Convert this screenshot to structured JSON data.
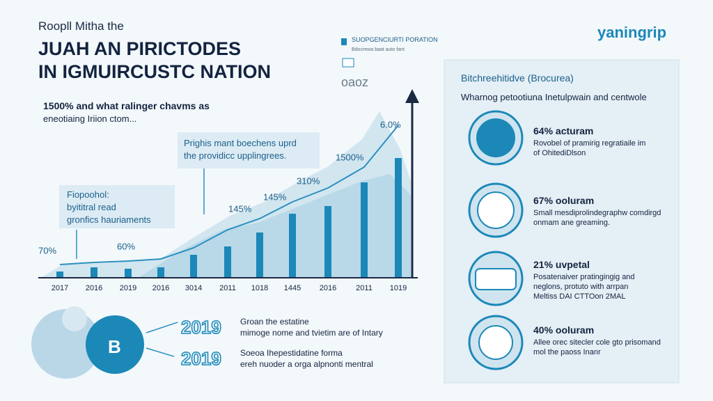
{
  "header": {
    "kicker": "Roopll Mitha the",
    "title_line1": "JUAH AN PIRICTODES",
    "title_line2": "IN IGMUIRCUSTC NATION",
    "logo": "yaningrip",
    "badge_title": "SUOPGENCIURTI PORATION",
    "badge_text": "Bdocrewa baat auto fant",
    "code": "oaoz"
  },
  "intro": {
    "line1": "1500% and what ralinger chavms as",
    "line2": "eneotiaing Iriion ctom..."
  },
  "callouts": [
    {
      "line1": "Prighis mant boechens uprd",
      "line2": "the providicc upplingrees."
    },
    {
      "line1": "Fiopoohol:",
      "line2": "byititral read",
      "line3": "gronfics hauriaments"
    }
  ],
  "chart": {
    "categories": [
      "2017",
      "2016",
      "2019",
      "2016",
      "3014",
      "2011",
      "1018",
      "1445",
      "2016",
      "2011",
      "1019"
    ],
    "values": [
      8,
      14,
      12,
      14,
      32,
      44,
      64,
      91,
      102,
      136,
      171
    ],
    "color": "#1b88b8",
    "annotations": [
      "70%",
      "60%",
      "145%",
      "145%",
      "310%",
      "1500%",
      "6.0%"
    ]
  },
  "panel": {
    "title": "Bitchreehitidve (Brocurea)",
    "subtitle": "Wharnog petootiuna Inetulpwain and centwole",
    "items": [
      {
        "stat": "64% acturam",
        "line1": "Rovobel of pramirig regratiaile im",
        "line2": "of OhitediDlson"
      },
      {
        "stat": "67% ooluram",
        "line1": "Small mesdiprolindegraphw comdirgd",
        "line2": "onmam ane greaming."
      },
      {
        "stat": "21% uvpetal",
        "line1": "Posatenaiver pratingingig and",
        "line2": "neglons, protuto with arrpan",
        "line3": "Meltiss DAI CTTOon 2MAL"
      },
      {
        "stat": "40% ooluram",
        "line1": "Allee orec sitecler cole gto prisomand",
        "line2": "mol the paoss Inanr"
      }
    ]
  },
  "bottom": {
    "circle_letter": "B",
    "rows": [
      {
        "year": "2019",
        "line1": "Groan the estatine",
        "line2": "mimoge nome and tvietim are of Intary"
      },
      {
        "year": "2019",
        "line1": "Soeoa Ihepestidatine forma",
        "line2": "ereh nuoder a orga alpnonti mentral"
      }
    ]
  }
}
